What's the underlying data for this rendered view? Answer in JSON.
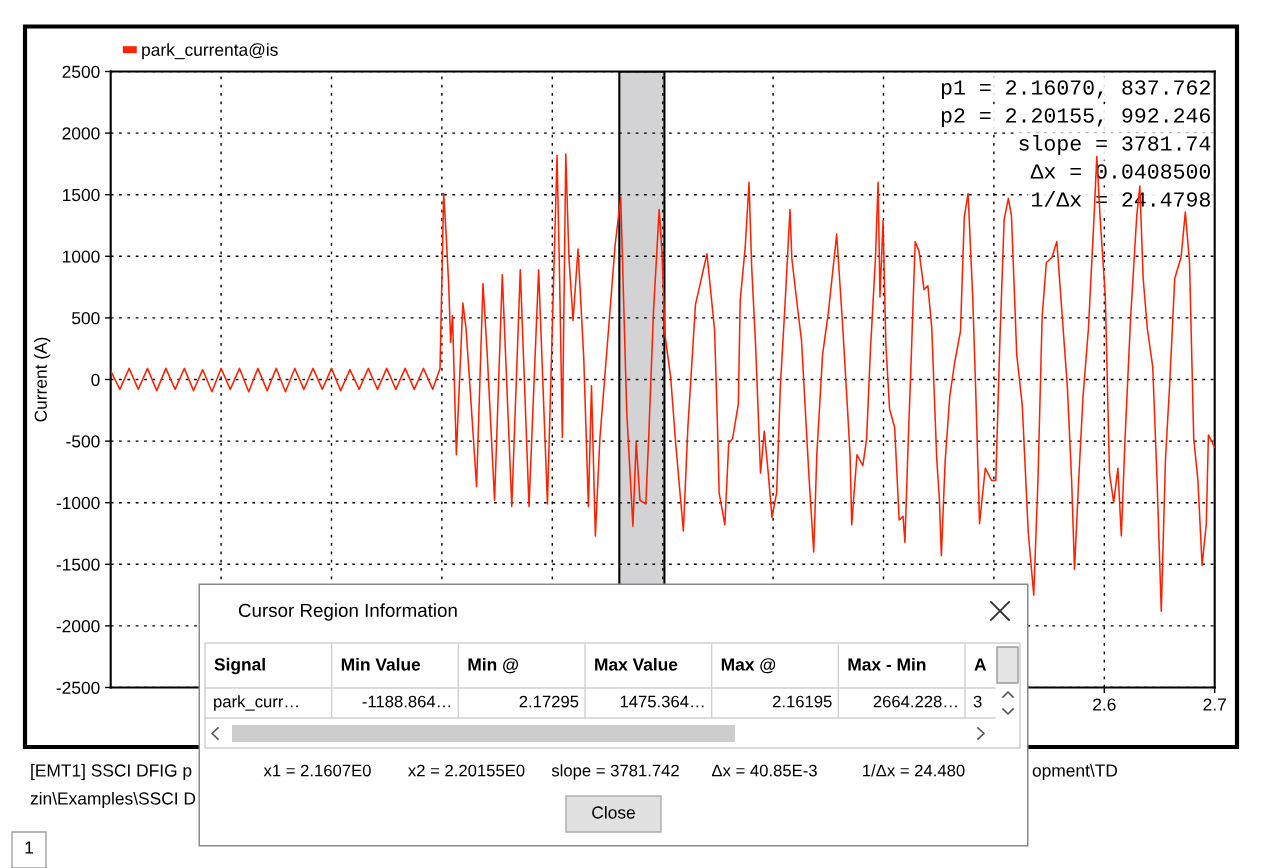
{
  "chart_data": [
    {
      "type": "line",
      "ylabel": "Current (A)",
      "x": [
        1.7,
        1.7083,
        1.7167,
        1.725,
        1.7333,
        1.7417,
        1.75,
        1.7583,
        1.7667,
        1.775,
        1.7833,
        1.7917,
        1.8,
        1.8083,
        1.8167,
        1.825,
        1.8333,
        1.8417,
        1.85,
        1.8583,
        1.8667,
        1.875,
        1.8833,
        1.8917,
        1.9,
        1.9083,
        1.9167,
        1.925,
        1.9333,
        1.9417,
        1.95,
        1.9583,
        1.9667,
        1.975,
        1.9833,
        1.9917,
        1.9983,
        2.0016,
        2.0037,
        2.0062,
        2.0079,
        2.0096,
        2.0131,
        2.0149,
        2.019,
        2.0218,
        2.0253,
        2.0314,
        2.0372,
        2.0409,
        2.0477,
        2.0547,
        2.0633,
        2.071,
        2.0789,
        2.0876,
        2.0956,
        2.1043,
        2.1067,
        2.1091,
        2.1122,
        2.1151,
        2.1188,
        2.1233,
        2.1285,
        2.1327,
        2.1355,
        2.139,
        2.1431,
        2.15,
        2.157,
        2.162,
        2.1674,
        2.173,
        2.176,
        2.1794,
        2.1847,
        2.1874,
        2.1916,
        2.1968,
        2.1993,
        2.2021,
        2.2072,
        2.2117,
        2.2187,
        2.2228,
        2.2297,
        2.2401,
        2.247,
        2.2494,
        2.2511,
        2.2563,
        2.2598,
        2.2633,
        2.2685,
        2.2702,
        2.2747,
        2.2782,
        2.2806,
        2.2841,
        2.2886,
        2.292,
        2.2956,
        2.299,
        2.3032,
        2.3066,
        2.3108,
        2.3153,
        2.317,
        2.3223,
        2.3257,
        2.3327,
        2.3368,
        2.3396,
        2.3448,
        2.35,
        2.3576,
        2.3629,
        2.3674,
        2.3697,
        2.3712,
        2.376,
        2.3813,
        2.3847,
        2.3881,
        2.3927,
        2.3951,
        2.3968,
        2.3996,
        2.4021,
        2.4055,
        2.4101,
        2.4142,
        2.4177,
        2.4194,
        2.4228,
        2.4245,
        2.4287,
        2.4322,
        2.4367,
        2.4402,
        2.4437,
        2.4482,
        2.4506,
        2.4524,
        2.4558,
        2.46,
        2.4645,
        2.4697,
        2.4732,
        2.4766,
        2.4808,
        2.4836,
        2.487,
        2.4922,
        2.4979,
        2.5017,
        2.5055,
        2.5093,
        2.5131,
        2.5159,
        2.5207,
        2.5257,
        2.5311,
        2.5361,
        2.5399,
        2.5437,
        2.5475,
        2.5525,
        2.557,
        2.5608,
        2.5666,
        2.5704,
        2.573,
        2.5768,
        2.5807,
        2.5856,
        2.5906,
        2.5932,
        2.5963,
        2.6009,
        2.6047,
        2.6085,
        2.6123,
        2.6154,
        2.6188,
        2.6237,
        2.6294,
        2.6322,
        2.6352,
        2.639,
        2.6439,
        2.6478,
        2.6516,
        2.6554,
        2.6592,
        2.6638,
        2.6695,
        2.6734,
        2.6772,
        2.681,
        2.6848,
        2.6886,
        2.6924,
        2.6943,
        2.7
      ],
      "series": [
        {
          "name": "park_currenta@is",
          "color": "#ff2000",
          "values": [
            70,
            -80,
            90,
            -80,
            90,
            -90,
            90,
            -80,
            90,
            -90,
            80,
            -100,
            90,
            -80,
            90,
            -100,
            90,
            -90,
            90,
            -100,
            90,
            -80,
            90,
            -80,
            90,
            -90,
            80,
            -80,
            90,
            -80,
            90,
            -80,
            90,
            -80,
            90,
            -80,
            90,
            1510,
            1200,
            760,
            300,
            520,
            -610,
            -230,
            620,
            420,
            -40,
            -870,
            780,
            230,
            -980,
            850,
            -1030,
            890,
            -1030,
            890,
            -1010,
            1820,
            790,
            -470,
            1830,
            980,
            480,
            1060,
            170,
            -1030,
            -50,
            -1270,
            -480,
            300,
            1100,
            1480,
            -260,
            -1190,
            -510,
            -980,
            -1010,
            -450,
            540,
            1380,
            1040,
            360,
            20,
            -510,
            -1230,
            -390,
            610,
            1020,
            400,
            -310,
            -920,
            -1180,
            -520,
            -480,
            -200,
            640,
            1070,
            1600,
            910,
            290,
            -760,
            -420,
            -760,
            -1120,
            -920,
            -50,
            610,
            1380,
            980,
            570,
            320,
            -820,
            -1400,
            -610,
            200,
            540,
            1180,
            450,
            -240,
            -610,
            -1180,
            -610,
            -700,
            -480,
            230,
            980,
            1600,
            670,
            1290,
            290,
            -240,
            -390,
            -1140,
            -1110,
            -1320,
            -390,
            10,
            1120,
            1040,
            730,
            760,
            420,
            -640,
            -970,
            -1430,
            -670,
            -140,
            140,
            390,
            1320,
            1510,
            670,
            -110,
            -1170,
            -720,
            -820,
            -820,
            340,
            1300,
            1470,
            1330,
            200,
            -210,
            -1240,
            -1750,
            -820,
            510,
            950,
            990,
            1120,
            650,
            -70,
            -820,
            -1540,
            -820,
            -140,
            410,
            1300,
            1810,
            1300,
            680,
            -760,
            -1000,
            -720,
            -1270,
            -480,
            480,
            1330,
            1570,
            820,
            410,
            100,
            -820,
            -1880,
            -650,
            -40,
            820,
            990,
            1360,
            950,
            -480,
            -820,
            -1510,
            -1170,
            -450,
            -550
          ]
        }
      ],
      "xlim": [
        1.7,
        2.7
      ],
      "xticks": [
        {
          "value": 1.8,
          "label": null
        },
        {
          "value": 1.9,
          "label": null
        },
        {
          "value": 2.0,
          "label": null
        },
        {
          "value": 2.1,
          "label": null
        },
        {
          "value": 2.2,
          "label": null
        },
        {
          "value": 2.3,
          "label": null
        },
        {
          "value": 2.4,
          "label": null
        },
        {
          "value": 2.5,
          "label": null
        },
        2.6,
        2.7
      ],
      "ylim": [
        -2500,
        2500
      ],
      "yticks": [
        -2500,
        -2000,
        -1500,
        -1000,
        -500,
        0,
        500,
        1000,
        1500,
        2000,
        2500
      ],
      "bands": [
        {
          "axis": "x",
          "from": 2.1607,
          "to": 2.20155,
          "color": "#d3d3d6"
        }
      ],
      "annotations": [
        "p1 = 2.16070, 837.762",
        "p2 = 2.20155, 992.246",
        "slope = 3781.74",
        "Δx = 0.0408500",
        "1/Δx = 24.4798"
      ],
      "grid": true,
      "legend": "top left"
    },
    {
      "type": "other",
      "title": "Cursor Region Information",
      "categories": [
        "Signal",
        "Min Value",
        "Min @",
        "Max Value",
        "Max @",
        "Max - Min",
        "A"
      ],
      "annotations": [
        "park_curr…",
        "-1188.864…",
        "2.17295",
        "1475.364…",
        "2.16195",
        "2664.228…",
        "3",
        "x1 = 2.1607E0",
        "x2 = 2.20155E0",
        "slope = 3781.742",
        "Δx = 40.85E-3",
        "1/Δx = 24.480",
        "Close"
      ]
    },
    {
      "type": "other",
      "annotations": [
        "[EMT1] SSCI DFIG p",
        "opment\\TD",
        "zin\\Examples\\SSCI D",
        "1"
      ]
    }
  ]
}
